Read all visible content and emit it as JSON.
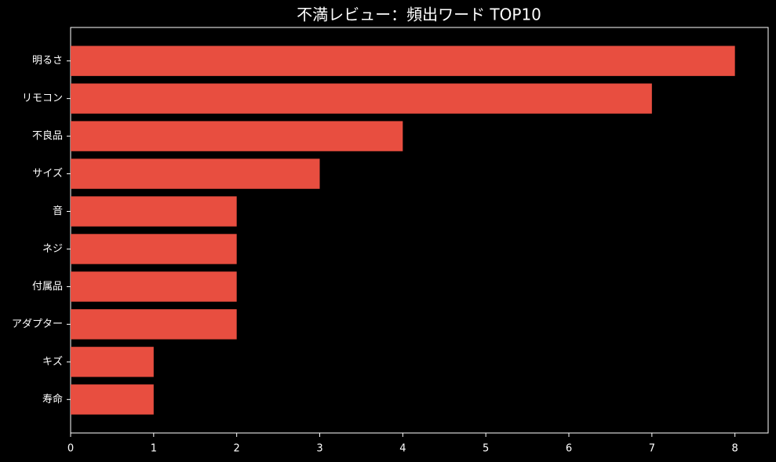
{
  "chart_data": {
    "type": "barh",
    "title": "不満レビュー：頻出ワード TOP10",
    "categories": [
      "明るさ",
      "リモコン",
      "不良品",
      "サイズ",
      "音",
      "ネジ",
      "付属品",
      "アダプター",
      "キズ",
      "寿命"
    ],
    "values": [
      8,
      7,
      4,
      3,
      2,
      2,
      2,
      2,
      1,
      1
    ],
    "color": "#e84e40",
    "xlim": [
      0,
      8.4
    ],
    "xticks": [
      0,
      1,
      2,
      3,
      4,
      5,
      6,
      7,
      8
    ],
    "grid": false
  }
}
